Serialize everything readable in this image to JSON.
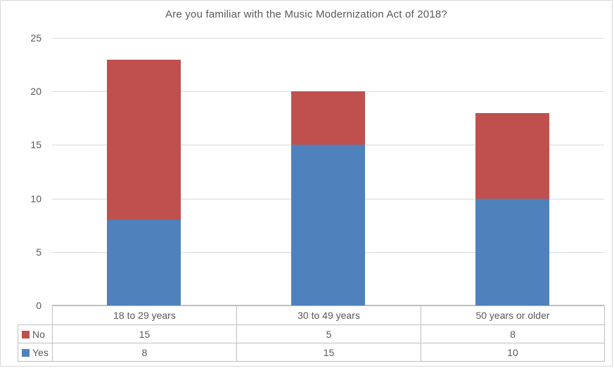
{
  "chart_data": {
    "type": "bar",
    "stacked": true,
    "title": "Are you familiar with the Music Modernization Act of 2018?",
    "categories": [
      "18 to 29 years",
      "30 to 49 years",
      "50 years or older"
    ],
    "series": [
      {
        "name": "No",
        "color": "#c0504d",
        "values": [
          15,
          5,
          8
        ]
      },
      {
        "name": "Yes",
        "color": "#4f81bd",
        "values": [
          8,
          15,
          10
        ]
      }
    ],
    "xlabel": "",
    "ylabel": "",
    "ylim": [
      0,
      25
    ],
    "yticks": [
      0,
      5,
      10,
      15,
      20,
      25
    ],
    "grid": true,
    "legend_position": "data-table-left",
    "totals": [
      23,
      20,
      18
    ]
  },
  "style": {
    "gridline_color": "#d9d9d9",
    "axis_color": "#bfbfbf",
    "table_border_color": "#bfbfbf",
    "text_color": "#595959",
    "background": "#ffffff"
  }
}
